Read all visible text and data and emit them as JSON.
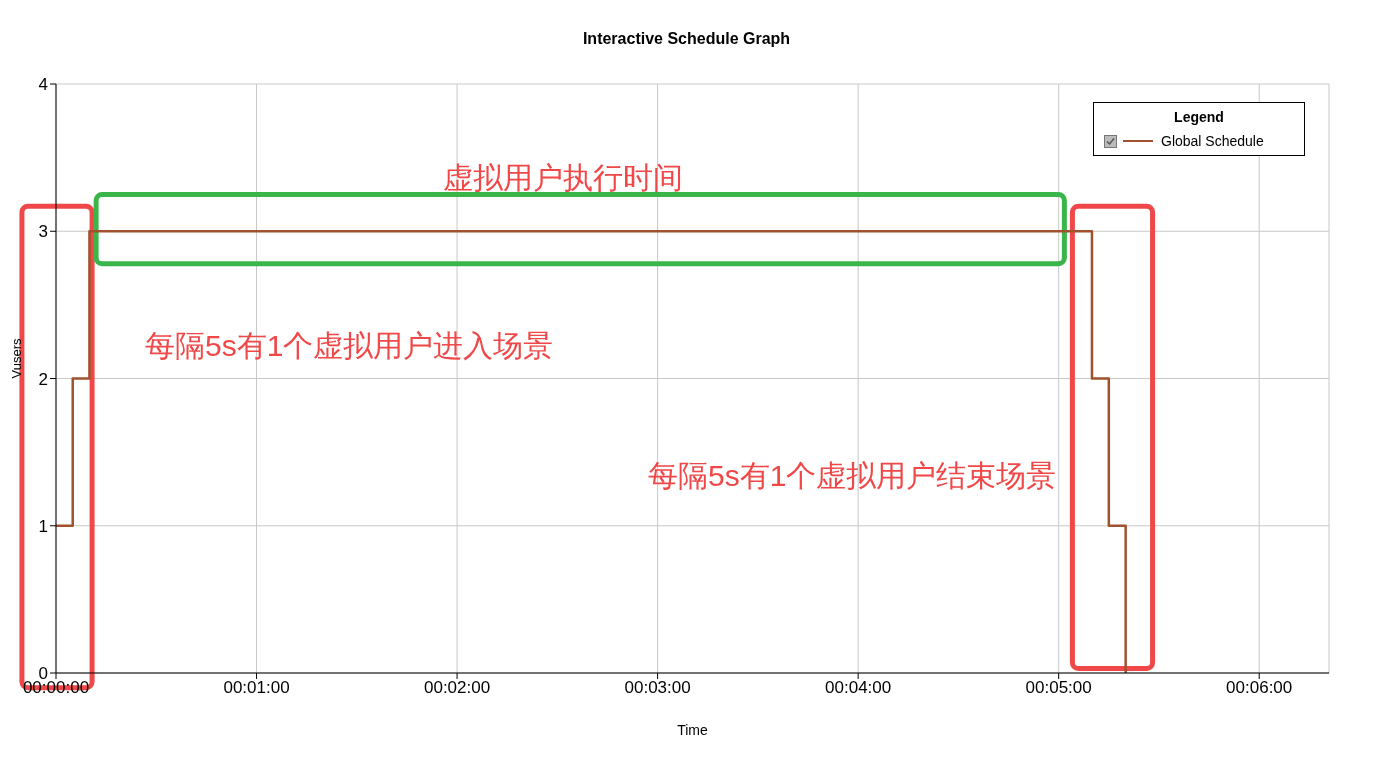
{
  "chart_data": {
    "type": "step",
    "title": "Interactive Schedule Graph",
    "xlabel": "Time",
    "ylabel": "Vusers",
    "legend_title": "Legend",
    "legend": "top right",
    "grid": true,
    "marker": "none",
    "x": [
      0,
      0.00139,
      0.00278,
      0.0861,
      0.0875,
      0.0889
    ],
    "series": [
      {
        "name": "Global Schedule",
        "color": "#a0522d",
        "values": [
          1,
          2,
          3,
          2,
          1,
          0
        ]
      }
    ],
    "xlim": [
      0,
      0.1058
    ],
    "xticks": [
      {
        "value": 0,
        "label": "00:00:00"
      },
      {
        "value": 0.016667,
        "label": "00:01:00"
      },
      {
        "value": 0.033333,
        "label": "00:02:00"
      },
      {
        "value": 0.05,
        "label": "00:03:00"
      },
      {
        "value": 0.066667,
        "label": "00:04:00"
      },
      {
        "value": 0.083333,
        "label": "00:05:00"
      },
      {
        "value": 0.1,
        "label": "00:06:00"
      }
    ],
    "ylim": [
      0,
      4
    ],
    "yticks": [
      0,
      1,
      2,
      3,
      4
    ],
    "annotations": [
      "虚拟用户执行时间",
      "每隔5s有1个虚拟用户进入场景",
      "每隔5s有1个虚拟用户结束场景"
    ]
  }
}
